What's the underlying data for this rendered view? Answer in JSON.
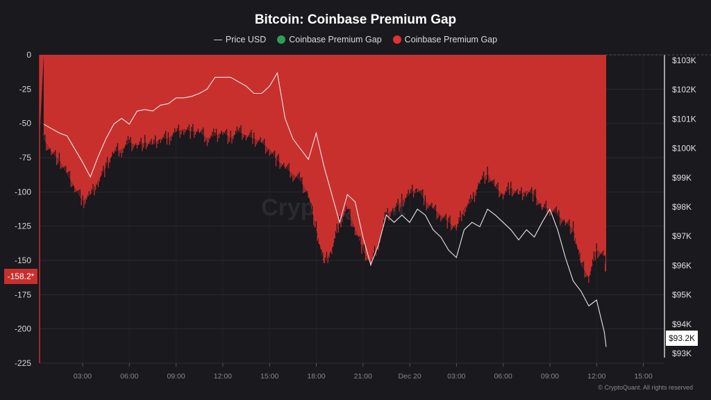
{
  "chart_data": {
    "type": "area+line",
    "title": "Bitcoin: Coinbase Premium Gap",
    "legend": [
      {
        "label": "Price USD",
        "marker": "line",
        "color": "#d9d9d9"
      },
      {
        "label": "Coinbase Premium Gap",
        "marker": "dot",
        "color": "#2e9e54"
      },
      {
        "label": "Coinbase Premium Gap",
        "marker": "dot",
        "color": "#e0322f"
      }
    ],
    "legend_placement": "top",
    "grid": true,
    "y_left": {
      "ticks": [
        "0",
        "-25",
        "-50",
        "-75",
        "-100",
        "-125",
        "-150",
        "-175",
        "-200",
        "-225"
      ],
      "range": [
        -225,
        0
      ]
    },
    "y_right": {
      "ticks": [
        "$103K",
        "$102K",
        "$101K",
        "$100K",
        "$99K",
        "$98K",
        "$97K",
        "$96K",
        "$95K",
        "$94K",
        "$93K"
      ],
      "range": [
        93,
        103
      ],
      "unit": "K USD"
    },
    "x_ticks": [
      "03:00",
      "06:00",
      "09:00",
      "12:00",
      "15:00",
      "18:00",
      "21:00",
      "Dec 20",
      "03:00",
      "06:00",
      "09:00",
      "12:00",
      "15:00"
    ],
    "x_range": [
      "Dec 19 00:14",
      "Dec 20 16:40"
    ],
    "current_gap_label": "-158.2*",
    "current_price_label": "$93.2K",
    "watermark": "CryptoQuant",
    "copyright": "© CryptoQuant. All rights reserved",
    "x": [
      "Dec 19 00:30",
      "Dec 19 01:00",
      "Dec 19 01:30",
      "Dec 19 02:00",
      "Dec 19 02:30",
      "Dec 19 03:00",
      "Dec 19 03:30",
      "Dec 19 04:00",
      "Dec 19 04:30",
      "Dec 19 05:00",
      "Dec 19 05:30",
      "Dec 19 06:00",
      "Dec 19 06:30",
      "Dec 19 07:00",
      "Dec 19 07:30",
      "Dec 19 08:00",
      "Dec 19 08:30",
      "Dec 19 09:00",
      "Dec 19 09:30",
      "Dec 19 10:00",
      "Dec 19 10:30",
      "Dec 19 11:00",
      "Dec 19 11:30",
      "Dec 19 12:00",
      "Dec 19 12:30",
      "Dec 19 13:00",
      "Dec 19 13:30",
      "Dec 19 14:00",
      "Dec 19 14:30",
      "Dec 19 15:00",
      "Dec 19 15:30",
      "Dec 19 16:00",
      "Dec 19 16:30",
      "Dec 19 17:00",
      "Dec 19 17:30",
      "Dec 19 18:00",
      "Dec 19 18:30",
      "Dec 19 19:00",
      "Dec 19 19:30",
      "Dec 19 20:00",
      "Dec 19 20:30",
      "Dec 19 21:00",
      "Dec 19 21:30",
      "Dec 19 22:00",
      "Dec 19 22:30",
      "Dec 19 23:00",
      "Dec 19 23:30",
      "Dec 20 00:00",
      "Dec 20 00:30",
      "Dec 20 01:00",
      "Dec 20 01:30",
      "Dec 20 02:00",
      "Dec 20 02:30",
      "Dec 20 03:00",
      "Dec 20 03:30",
      "Dec 20 04:00",
      "Dec 20 04:30",
      "Dec 20 05:00",
      "Dec 20 05:30",
      "Dec 20 06:00",
      "Dec 20 06:30",
      "Dec 20 07:00",
      "Dec 20 07:30",
      "Dec 20 08:00",
      "Dec 20 08:30",
      "Dec 20 09:00",
      "Dec 20 09:30",
      "Dec 20 10:00",
      "Dec 20 10:30",
      "Dec 20 11:00",
      "Dec 20 11:30",
      "Dec 20 12:00",
      "Dec 20 12:30",
      "Dec 20 12:37"
    ],
    "series": [
      {
        "name": "Coinbase Premium Gap",
        "axis": "left",
        "color": "#c8302e",
        "values": [
          -61,
          -71,
          -77,
          -87,
          -97,
          -107,
          -102,
          -92,
          -82,
          -71,
          -69,
          -64,
          -66,
          -64,
          -66,
          -61,
          -61,
          -56,
          -54,
          -56,
          -56,
          -61,
          -59,
          -56,
          -61,
          -56,
          -59,
          -61,
          -64,
          -69,
          -77,
          -82,
          -87,
          -92,
          -102,
          -127,
          -153,
          -142,
          -122,
          -112,
          -127,
          -142,
          -153,
          -137,
          -117,
          -112,
          -107,
          -102,
          -97,
          -107,
          -112,
          -117,
          -122,
          -127,
          -112,
          -107,
          -92,
          -87,
          -97,
          -102,
          -97,
          -102,
          -99,
          -102,
          -112,
          -112,
          -117,
          -122,
          -127,
          -153,
          -163,
          -142,
          -147,
          -158.2
        ]
      },
      {
        "name": "Price USD",
        "axis": "right",
        "color": "#e8e8e8",
        "values": [
          100.8,
          100.65,
          100.5,
          100.4,
          99.95,
          99.5,
          99.0,
          99.7,
          100.3,
          100.8,
          101.0,
          100.8,
          101.25,
          101.3,
          101.25,
          101.45,
          101.5,
          101.7,
          101.7,
          101.75,
          101.85,
          102.0,
          102.4,
          102.4,
          102.4,
          102.25,
          102.1,
          101.85,
          101.85,
          102.1,
          102.55,
          101.0,
          100.3,
          99.95,
          99.6,
          100.5,
          99.35,
          98.4,
          97.45,
          98.4,
          98.15,
          96.95,
          96.0,
          96.7,
          97.7,
          97.45,
          97.7,
          97.45,
          97.9,
          97.7,
          97.2,
          96.95,
          96.5,
          96.25,
          97.2,
          97.45,
          97.3,
          97.9,
          97.7,
          97.45,
          97.2,
          96.85,
          97.2,
          96.95,
          97.45,
          97.9,
          97.2,
          96.25,
          95.45,
          95.1,
          94.6,
          94.8,
          93.7,
          93.2
        ]
      }
    ]
  }
}
